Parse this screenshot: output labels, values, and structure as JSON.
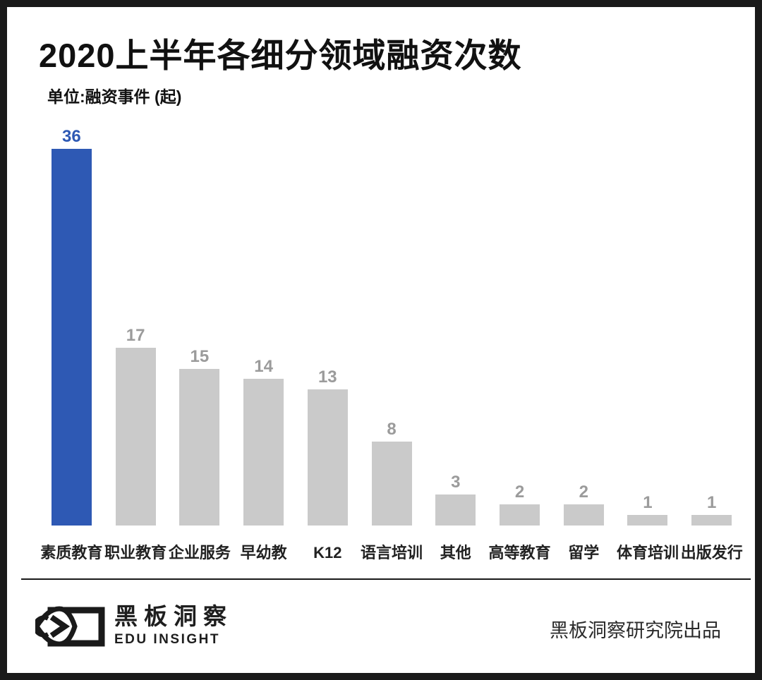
{
  "header": {
    "title": "2020上半年各细分领域融资次数",
    "subtitle": "单位:融资事件 (起)"
  },
  "chart_data": {
    "type": "bar",
    "title": "2020上半年各细分领域融资次数",
    "unit_label": "单位:融资事件 (起)",
    "categories": [
      "素质教育",
      "职业教育",
      "企业服务",
      "早幼教",
      "K12",
      "语言培训",
      "其他",
      "高等教育",
      "留学",
      "体育培训",
      "出版发行"
    ],
    "values": [
      36,
      17,
      15,
      14,
      13,
      8,
      3,
      2,
      2,
      1,
      1
    ],
    "ylim": [
      0,
      36
    ],
    "grid": "off",
    "legend": "none",
    "highlight_index": 0,
    "colors": {
      "bar_highlight": "#2E59B4",
      "bar_default": "#CACACA",
      "value_label_highlight": "#2E59B4",
      "value_label_default": "#9B9B9B"
    }
  },
  "footer": {
    "logo": {
      "icon": "eye-logo-icon",
      "name_cn": "黑板洞察",
      "name_en": "EDU INSIGHT"
    },
    "credit": "黑板洞察研究院出品"
  }
}
